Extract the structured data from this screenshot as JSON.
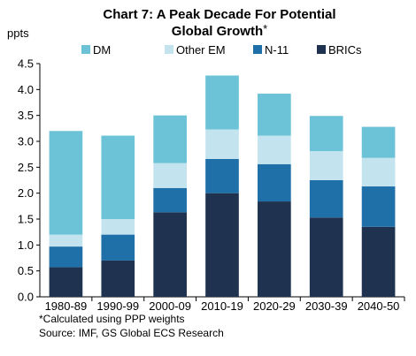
{
  "chart_data": {
    "type": "bar",
    "stacked": true,
    "title_line1": "Chart 7: A Peak Decade For Potential",
    "title_line2": "Global Growth",
    "title_mark": "*",
    "ylabel": "ppts",
    "ylim": [
      0,
      4.5
    ],
    "ytick_step": 0.5,
    "yticks": [
      "0.0",
      "0.5",
      "1.0",
      "1.5",
      "2.0",
      "2.5",
      "3.0",
      "3.5",
      "4.0",
      "4.5"
    ],
    "categories": [
      "1980-89",
      "1990-99",
      "2000-09",
      "2010-19",
      "2020-29",
      "2030-39",
      "2040-50"
    ],
    "series": [
      {
        "name": "BRICs",
        "color": "#1f3350",
        "values": [
          0.57,
          0.7,
          1.63,
          2.0,
          1.84,
          1.53,
          1.35
        ]
      },
      {
        "name": "N-11",
        "color": "#1f6fa8",
        "values": [
          0.4,
          0.5,
          0.47,
          0.66,
          0.72,
          0.72,
          0.78
        ]
      },
      {
        "name": "Other EM",
        "color": "#c3e4ef",
        "values": [
          0.23,
          0.3,
          0.48,
          0.57,
          0.55,
          0.56,
          0.55
        ]
      },
      {
        "name": "DM",
        "color": "#6cc3d8",
        "values": [
          2.0,
          1.61,
          0.92,
          1.04,
          0.81,
          0.68,
          0.6
        ]
      }
    ],
    "legend_order": [
      "DM",
      "Other EM",
      "N-11",
      "BRICs"
    ],
    "legend_placement": "top",
    "grid": false,
    "footnote": "*Calculated using PPP weights",
    "source": "Source: IMF, GS Global ECS Research"
  }
}
